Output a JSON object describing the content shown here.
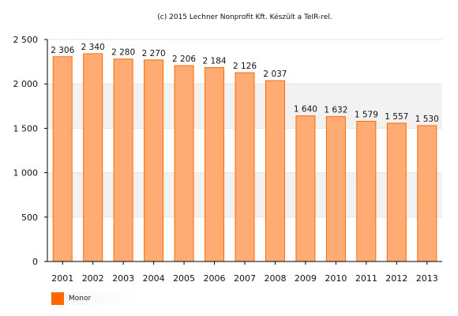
{
  "chart_data": {
    "type": "bar",
    "title": "(c) 2015 Lechner Nonprofit Kft. Készült a TeIR-rel.",
    "categories": [
      "2001",
      "2002",
      "2003",
      "2004",
      "2005",
      "2006",
      "2007",
      "2008",
      "2009",
      "2010",
      "2011",
      "2012",
      "2013"
    ],
    "series": [
      {
        "name": "Monor",
        "values": [
          2306,
          2340,
          2280,
          2270,
          2206,
          2184,
          2126,
          2037,
          1640,
          1632,
          1579,
          1557,
          1530
        ]
      }
    ],
    "value_labels": [
      "2 306",
      "2 340",
      "2 280",
      "2 270",
      "2 206",
      "2 184",
      "2 126",
      "2 037",
      "1 640",
      "1 632",
      "1 579",
      "1 557",
      "1 530"
    ],
    "y_ticks": [
      0,
      500,
      1000,
      1500,
      2000,
      2500
    ],
    "y_tick_labels": [
      "0",
      "500",
      "1 000",
      "1 500",
      "2 000",
      "2 500"
    ],
    "ylim": [
      0,
      2500
    ],
    "grid": true,
    "legend_position": "bottom-left",
    "colors": {
      "bar_fill": "#ffab74",
      "bar_stroke": "#ff6a00",
      "legend_swatch": "#ff6600",
      "band": "#f2f2f2",
      "axis": "#000000"
    }
  }
}
